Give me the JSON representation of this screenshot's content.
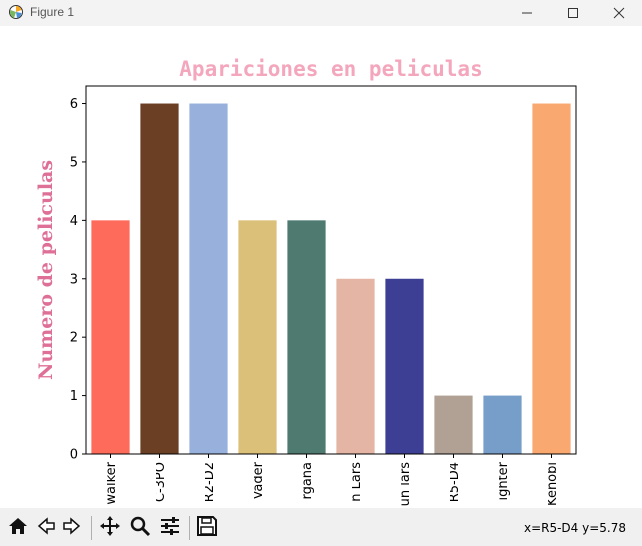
{
  "window": {
    "title": "Figure 1",
    "icons": {
      "app": "matplotlib-icon",
      "minimize": "minimize-icon",
      "maximize": "maximize-icon",
      "close": "close-icon"
    }
  },
  "toolbar": {
    "icons": [
      "home-icon",
      "back-arrow-icon",
      "forward-arrow-icon",
      "pan-icon",
      "zoom-icon",
      "configure-subplots-icon",
      "save-icon"
    ],
    "status_text": "x=R5-D4 y=5.78"
  },
  "chart_data": {
    "type": "bar",
    "title": "Apariciones en peliculas",
    "xlabel": "",
    "ylabel": "Numero de peliculas",
    "categories": [
      "walker",
      "C-3PO",
      "R2-D2",
      "Vader",
      "rgana",
      "n Lars",
      "un lars",
      "R5-D4",
      "ighter",
      "Kenobi"
    ],
    "values": [
      4,
      6,
      6,
      4,
      4,
      3,
      3,
      1,
      1,
      6
    ],
    "colors": [
      "#ff6b5b",
      "#6b3f24",
      "#98b0dc",
      "#dbc07a",
      "#4f7a70",
      "#e4b4a5",
      "#3d3f95",
      "#b0a194",
      "#779ec9",
      "#f9a870"
    ],
    "ylim": [
      0,
      6.3
    ],
    "yticks": [
      0,
      1,
      2,
      3,
      4,
      5,
      6
    ],
    "grid": false,
    "title_color": "#f4a6bd",
    "ylabel_color": "#de6f96"
  }
}
